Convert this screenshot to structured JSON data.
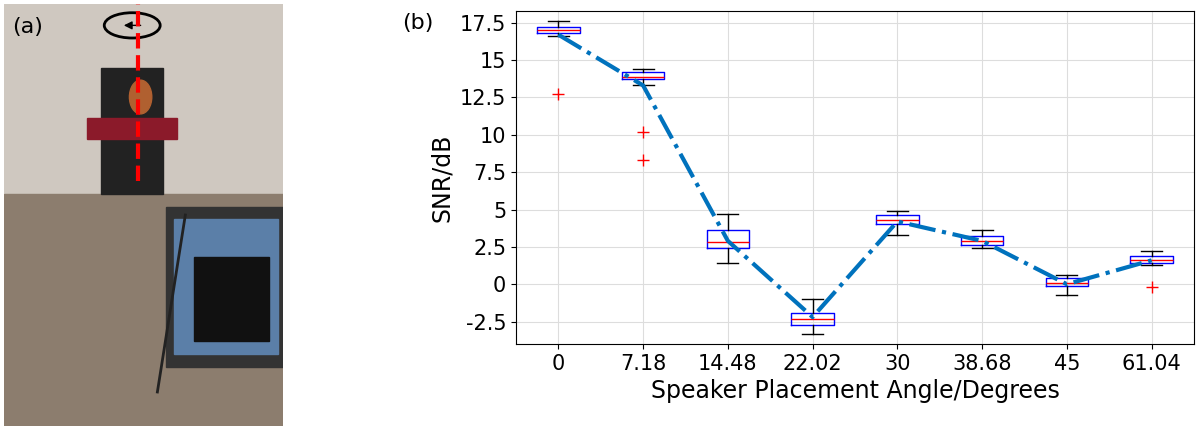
{
  "photo_panel": {
    "label": "(a)"
  },
  "chart_data": {
    "type": "box",
    "panel_label": "(b)",
    "x_label": "Speaker Placement Angle/Degrees",
    "y_label": "SNR/dB",
    "categories": [
      "0",
      "7.18",
      "14.48",
      "22.02",
      "30",
      "38.68",
      "45",
      "61.04"
    ],
    "median": [
      17.0,
      13.9,
      2.8,
      -2.3,
      4.3,
      2.9,
      0.1,
      1.6
    ],
    "q1": [
      16.8,
      13.7,
      2.4,
      -2.7,
      4.0,
      2.6,
      -0.1,
      1.4
    ],
    "q3": [
      17.2,
      14.2,
      3.6,
      -1.9,
      4.6,
      3.2,
      0.4,
      1.9
    ],
    "whisker_low": [
      16.6,
      13.3,
      1.4,
      -3.3,
      3.3,
      2.4,
      -0.7,
      1.3
    ],
    "whisker_high": [
      17.6,
      14.4,
      4.7,
      -1.0,
      4.9,
      3.6,
      0.6,
      2.2
    ],
    "outliers": [
      [
        12.7
      ],
      [
        10.2,
        8.3
      ],
      [],
      [],
      [],
      [],
      [],
      [
        -0.2
      ]
    ],
    "color": "#0000ff",
    "trend": {
      "values": [
        16.7,
        13.3,
        2.9,
        -2.2,
        4.2,
        2.9,
        0.0,
        1.6
      ],
      "color": "#0072bd",
      "line_style": "dashdot"
    },
    "ylim": [
      -4,
      18.3
    ],
    "yticks": [
      -2.5,
      0,
      2.5,
      5,
      7.5,
      10,
      12.5,
      15,
      17.5
    ],
    "grid": true
  }
}
